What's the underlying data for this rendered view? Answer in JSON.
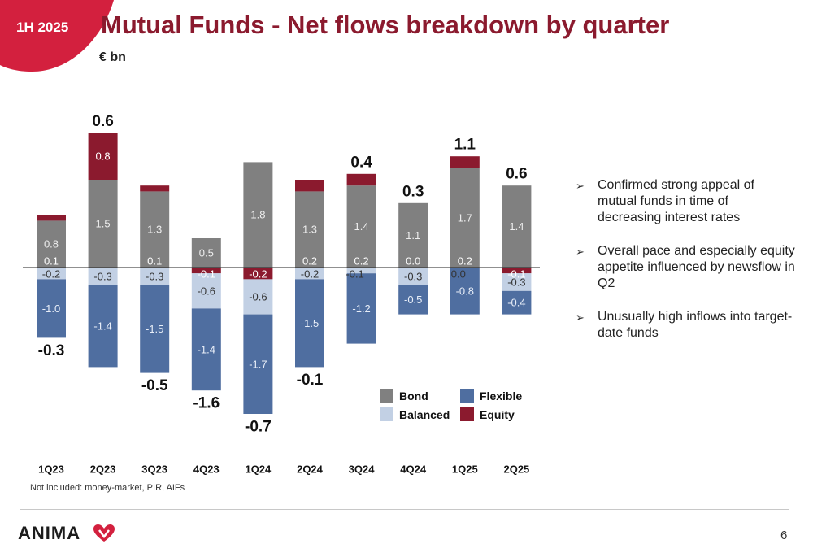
{
  "header": {
    "badge": "1H 2025",
    "title": "Mutual Funds - Net flows breakdown by quarter",
    "unit": "€ bn"
  },
  "colors": {
    "bond": "#808080",
    "balanced": "#c2d0e4",
    "flexible": "#4f6ea0",
    "equity": "#8b1a2e",
    "brand": "#8b1a2e",
    "brand_red": "#d3203e"
  },
  "chart_data": {
    "type": "bar",
    "stacked": true,
    "categories": [
      "1Q23",
      "2Q23",
      "3Q23",
      "4Q23",
      "1Q24",
      "2Q24",
      "3Q24",
      "4Q24",
      "1Q25",
      "2Q25"
    ],
    "series": [
      {
        "name": "Bond",
        "values": [
          0.8,
          1.5,
          1.3,
          0.5,
          1.8,
          1.3,
          1.4,
          1.1,
          1.7,
          1.4
        ]
      },
      {
        "name": "Balanced",
        "values": [
          -0.2,
          -0.3,
          -0.3,
          -0.6,
          -0.6,
          -0.2,
          -0.1,
          -0.3,
          0.0,
          -0.3
        ]
      },
      {
        "name": "Flexible",
        "values": [
          -1.0,
          -1.4,
          -1.5,
          -1.4,
          -1.7,
          -1.5,
          -1.2,
          -0.5,
          -0.8,
          -0.4
        ]
      },
      {
        "name": "Equity",
        "values": [
          0.1,
          0.8,
          0.1,
          -0.1,
          -0.2,
          0.2,
          0.2,
          0.0,
          0.2,
          -0.1
        ]
      }
    ],
    "segment_labels": [
      [
        "0.8",
        "1.5",
        "1.3",
        "0.5",
        "1.8",
        "1.3",
        "1.4",
        "1.1",
        "1.7",
        "1.4"
      ],
      [
        "-0.2",
        "-0.3",
        "-0.3",
        "-0.6",
        "-0.6",
        "-0.2",
        "-0.1",
        "-0.3",
        "0.0",
        "-0.3"
      ],
      [
        "-1.0",
        "-1.4",
        "-1.5",
        "-1.4",
        "-1.7",
        "-1.5",
        "-1.2",
        "-0.5",
        "-0.8",
        "-0.4"
      ],
      [
        "0.1",
        "0.8",
        "0.1",
        "-0.1",
        "-0.2",
        "0.2",
        "0.2",
        "0.0",
        "0.2",
        "-0.1"
      ]
    ],
    "totals": [
      -0.3,
      0.6,
      -0.5,
      -1.6,
      -0.7,
      -0.1,
      0.4,
      0.3,
      1.1,
      0.6
    ],
    "total_labels": [
      "-0.3",
      "0.6",
      "-0.5",
      "-1.6",
      "-0.7",
      "-0.1",
      "0.4",
      "0.3",
      "1.1",
      "0.6"
    ],
    "legend": [
      "Bond",
      "Flexible",
      "Balanced",
      "Equity"
    ],
    "legend_position": "bottom-right",
    "grid": false
  },
  "bullets": [
    "Confirmed strong appeal of mutual funds in time of decreasing interest rates",
    "Overall pace and especially equity appetite influenced by newsflow in Q2",
    "Unusually high inflows into target-date funds"
  ],
  "footnote": "Not included: money-market, PIR, AIFs",
  "footer": {
    "logo": "ANIMA",
    "page_number": "6"
  }
}
